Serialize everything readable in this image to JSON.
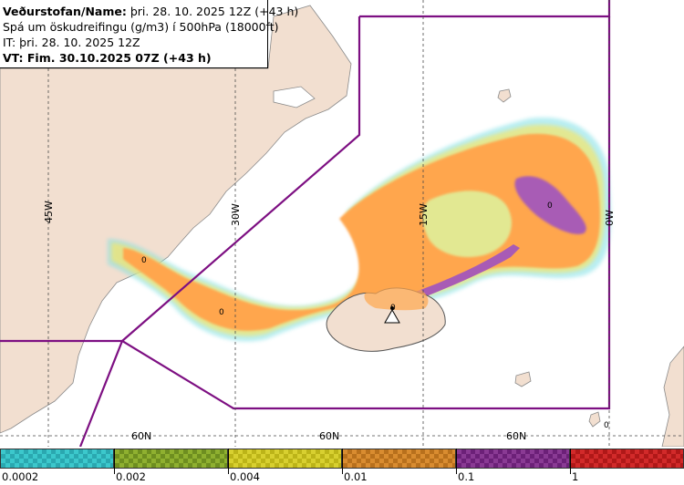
{
  "header": {
    "line1_bold": "Veðurstofan/Name:",
    "line1_rest": " þri. 28. 10. 2025 12Z (+43 h)",
    "line2": "Spá um öskudreifingu (g/m3) í 500hPa (18000ft)",
    "line3": "IT: þri. 28. 10. 2025 12Z",
    "line4": "VT: Fim. 30.10.2025 07Z (+43 h)"
  },
  "graticule": {
    "lon_labels": [
      "45W",
      "30W",
      "15W",
      "0W"
    ],
    "lat_labels": [
      "60N",
      "60N",
      "60N"
    ]
  },
  "contour_labels": [
    "0",
    "0",
    "0",
    "0",
    "0"
  ],
  "colors": {
    "land": "#f2dfd0",
    "coast": "#8a8a8a",
    "boundary": "#7d0f82",
    "ash_low": "#ffa64d",
    "ash_high": "#a85bb5",
    "ash_faint_yellow": "#f5e66b",
    "ash_faint_cyan": "#7fe0e6",
    "volcano_marker": "#ffffff"
  },
  "legend": {
    "labels": [
      "0.0002",
      "0.002",
      "0.004",
      "0.01",
      "0.1",
      "1"
    ],
    "swatch_colors": [
      "#3cc8cc",
      "#8fb030",
      "#d8d030",
      "#d98c30",
      "#8a3a94",
      "#d22a2a"
    ],
    "swatch_checker": [
      "#2aa8b0",
      "#6e8e20",
      "#bcb418",
      "#b8701c",
      "#6c2078",
      "#b01818"
    ]
  }
}
